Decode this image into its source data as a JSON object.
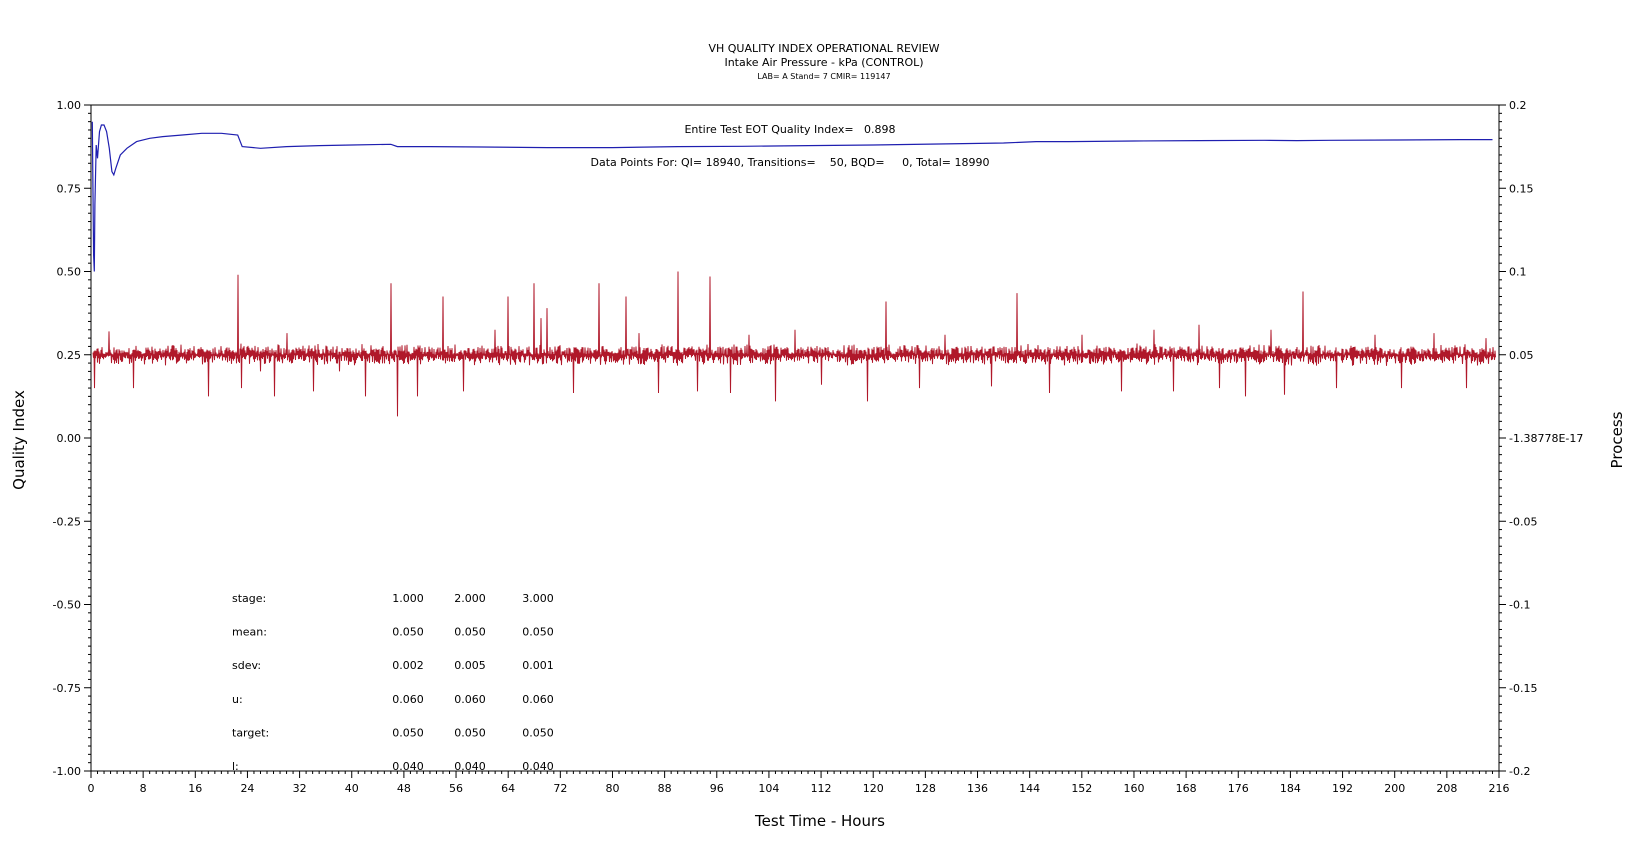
{
  "chart_data": {
    "type": "line",
    "title": "VH QUALITY INDEX OPERATIONAL REVIEW",
    "subtitle": "Intake Air Pressure - kPa (CONTROL)",
    "subtitle2": "LAB= A Stand= 7 CMIR= 119147",
    "xlabel": "Test Time - Hours",
    "ylabel_left": "Quality Index",
    "ylabel_right": "Process",
    "xlim": [
      0,
      216
    ],
    "ylim_left": [
      -1.0,
      1.0
    ],
    "ylim_right": [
      -0.2,
      0.2
    ],
    "x_ticks": [
      "0",
      "8",
      "16",
      "24",
      "32",
      "40",
      "48",
      "56",
      "64",
      "72",
      "80",
      "88",
      "96",
      "104",
      "112",
      "120",
      "128",
      "136",
      "144",
      "152",
      "160",
      "168",
      "176",
      "184",
      "192",
      "200",
      "208",
      "216"
    ],
    "y_left_ticks": [
      "1.00",
      "0.75",
      "0.50",
      "0.25",
      "0.00",
      "-0.25",
      "-0.50",
      "-0.75",
      "-1.00"
    ],
    "y_right_ticks": [
      "0.2",
      "0.15",
      "0.1",
      "0.05",
      "-1.38778E-17",
      "-0.05",
      "-0.1",
      "-0.15",
      "-0.2"
    ],
    "annotation_qi": "Entire Test EOT Quality Index=   0.898",
    "annotation_points": "Data Points For: QI= 18940, Transitions=    50, BQD=     0, Total= 18990",
    "series": [
      {
        "axis": "left",
        "color": "#1f1fb0",
        "x": [
          0.2,
          0.4,
          0.5,
          0.6,
          0.8,
          1.0,
          1.3,
          1.6,
          2.0,
          2.4,
          2.8,
          3.2,
          3.5,
          3.8,
          4.5,
          5.5,
          7,
          9,
          11,
          14,
          17,
          20,
          22.5,
          23.2,
          26,
          30,
          35,
          40,
          46,
          47,
          52,
          60,
          70,
          80,
          90,
          100,
          110,
          120,
          130,
          140,
          145,
          150,
          160,
          170,
          180,
          185,
          190,
          200,
          210,
          215
        ],
        "values": [
          0.95,
          0.55,
          0.5,
          0.7,
          0.88,
          0.84,
          0.92,
          0.94,
          0.94,
          0.92,
          0.87,
          0.8,
          0.79,
          0.81,
          0.85,
          0.87,
          0.89,
          0.9,
          0.905,
          0.91,
          0.915,
          0.915,
          0.91,
          0.875,
          0.87,
          0.875,
          0.878,
          0.88,
          0.882,
          0.875,
          0.875,
          0.874,
          0.872,
          0.872,
          0.875,
          0.876,
          0.878,
          0.88,
          0.883,
          0.886,
          0.89,
          0.89,
          0.892,
          0.893,
          0.894,
          0.893,
          0.894,
          0.895,
          0.896,
          0.896
        ]
      },
      {
        "axis": "right",
        "color": "#b0182a",
        "base": 0.05,
        "noise": 0.005,
        "spikes_x": [
          0.5,
          2.8,
          6.5,
          18,
          22.5,
          23.0,
          26,
          28,
          30,
          34,
          38,
          42,
          46,
          47,
          50,
          54,
          57,
          62,
          64,
          68,
          69,
          70,
          74,
          78,
          82,
          84,
          87,
          90,
          93,
          95,
          98,
          101,
          105,
          108,
          112,
          119,
          122,
          127,
          131,
          138,
          142,
          147,
          152,
          158,
          163,
          166,
          170,
          173,
          177,
          181,
          183,
          186,
          191,
          197,
          201,
          206,
          211,
          214
        ],
        "spikes_values": [
          0.03,
          0.064,
          0.03,
          0.025,
          0.098,
          0.03,
          0.04,
          0.025,
          0.063,
          0.028,
          0.04,
          0.025,
          0.093,
          0.013,
          0.025,
          0.085,
          0.028,
          0.065,
          0.085,
          0.093,
          0.072,
          0.078,
          0.027,
          0.093,
          0.085,
          0.063,
          0.027,
          0.1,
          0.028,
          0.097,
          0.027,
          0.062,
          0.022,
          0.065,
          0.032,
          0.022,
          0.082,
          0.03,
          0.062,
          0.031,
          0.087,
          0.027,
          0.062,
          0.028,
          0.065,
          0.028,
          0.068,
          0.03,
          0.025,
          0.065,
          0.026,
          0.088,
          0.03,
          0.062,
          0.03,
          0.063,
          0.03,
          0.06
        ]
      }
    ],
    "stats_table": {
      "rows": [
        {
          "label": "stage:",
          "values": [
            "1.000",
            "2.000",
            "3.000"
          ]
        },
        {
          "label": "mean:",
          "values": [
            "0.050",
            "0.050",
            "0.050"
          ]
        },
        {
          "label": "sdev:",
          "values": [
            "0.002",
            "0.005",
            "0.001"
          ]
        },
        {
          "label": "u:",
          "values": [
            "0.060",
            "0.060",
            "0.060"
          ]
        },
        {
          "label": "target:",
          "values": [
            "0.050",
            "0.050",
            "0.050"
          ]
        },
        {
          "label": "l:",
          "values": [
            "0.040",
            "0.040",
            "0.040"
          ]
        }
      ]
    },
    "grid": false,
    "legend": "none"
  }
}
